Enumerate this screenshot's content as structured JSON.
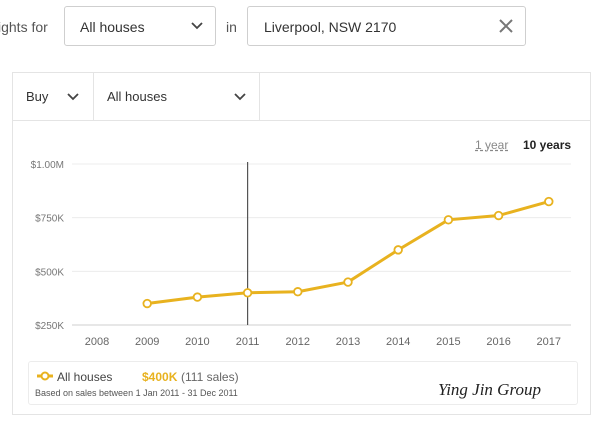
{
  "search": {
    "prefix": "ights for",
    "property_type": "All houses",
    "connector": "in",
    "location": "Liverpool, NSW 2170"
  },
  "controls": {
    "mode": "Buy",
    "property_type": "All houses"
  },
  "ranges": {
    "one_year": "1 year",
    "ten_years": "10 years",
    "selected": "10 years"
  },
  "colors": {
    "series": "#e8b21f",
    "marker": "#555555"
  },
  "chart_data": {
    "type": "line",
    "x": [
      2009,
      2010,
      2011,
      2012,
      2013,
      2014,
      2015,
      2016,
      2017
    ],
    "series": [
      {
        "name": "All houses",
        "values": [
          350,
          380,
          400,
          405,
          450,
          600,
          740,
          760,
          825
        ]
      }
    ],
    "x_ticks": [
      "2008",
      "2009",
      "2010",
      "2011",
      "2012",
      "2013",
      "2014",
      "2015",
      "2016",
      "2017"
    ],
    "y_ticks": [
      {
        "value": 250,
        "label": "$250K"
      },
      {
        "value": 500,
        "label": "$500K"
      },
      {
        "value": 750,
        "label": "$750K"
      },
      {
        "value": 1000,
        "label": "$1.00M"
      }
    ],
    "ylim": [
      250,
      1000
    ],
    "xlim": [
      2008,
      2017
    ],
    "highlight_year": 2011,
    "grid": true
  },
  "legend": {
    "series_name": "All houses",
    "price": "$400K",
    "sales": "(111 sales)",
    "note": "Based on sales between 1 Jan 2011 - 31 Dec 2011"
  },
  "watermark": "Ying Jin Group"
}
